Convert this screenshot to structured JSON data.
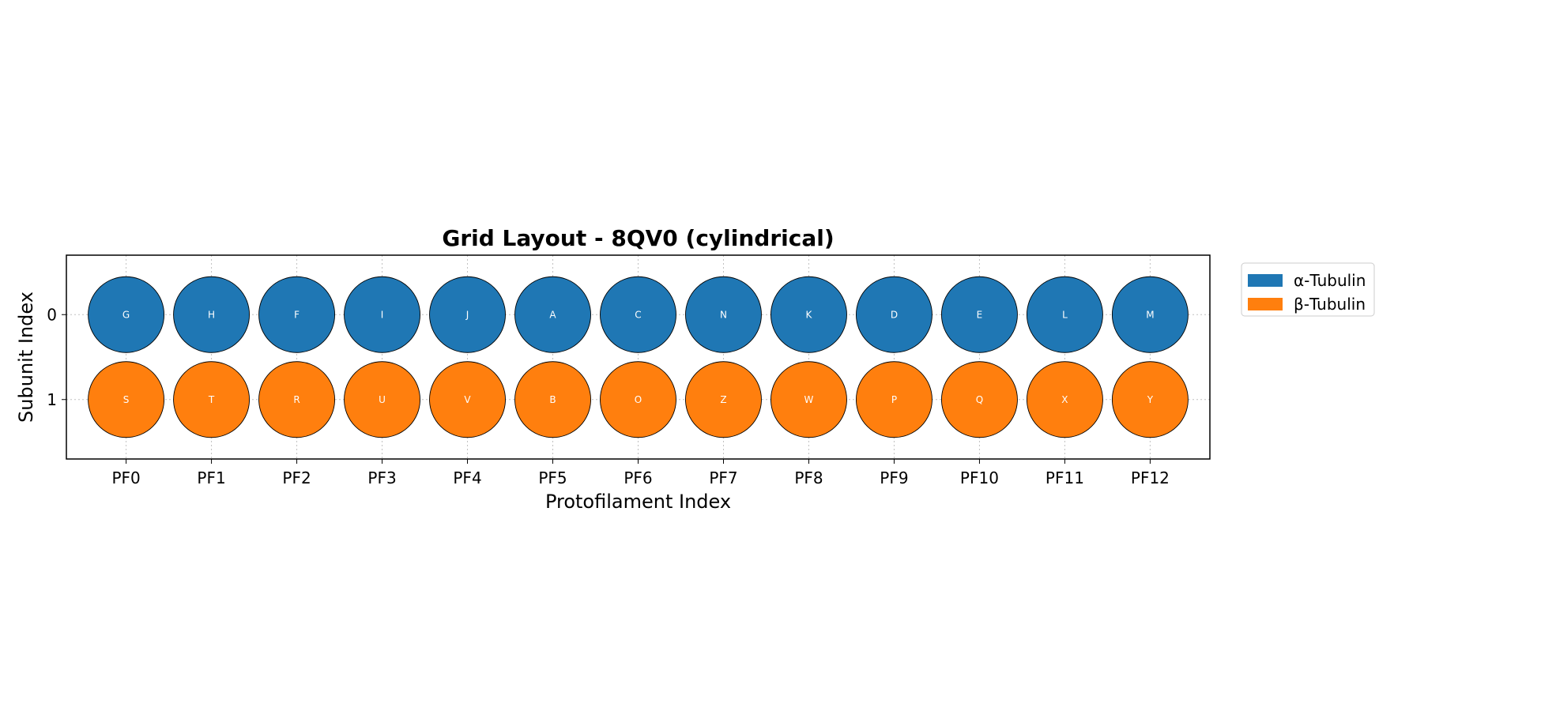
{
  "chart_data": {
    "type": "scatter",
    "title": "Grid Layout - 8QV0 (cylindrical)",
    "xlabel": "Protofilament Index",
    "ylabel": "Subunit Index",
    "x_ticks": [
      "PF0",
      "PF1",
      "PF2",
      "PF3",
      "PF4",
      "PF5",
      "PF6",
      "PF7",
      "PF8",
      "PF9",
      "PF10",
      "PF11",
      "PF12"
    ],
    "y_ticks": [
      "0",
      "1"
    ],
    "xlim": [
      -0.7,
      12.7
    ],
    "ylim": [
      1.7,
      -0.7
    ],
    "grid": true,
    "legend_placement": "outside-top-right",
    "series": [
      {
        "name": "α-Tubulin",
        "color": "#1f77b4",
        "subunit": 0,
        "labels": [
          "G",
          "H",
          "F",
          "I",
          "J",
          "A",
          "C",
          "N",
          "K",
          "D",
          "E",
          "L",
          "M"
        ]
      },
      {
        "name": "β-Tubulin",
        "color": "#ff7f0e",
        "subunit": 1,
        "labels": [
          "S",
          "T",
          "R",
          "U",
          "V",
          "B",
          "O",
          "Z",
          "W",
          "P",
          "Q",
          "X",
          "Y"
        ]
      }
    ]
  }
}
